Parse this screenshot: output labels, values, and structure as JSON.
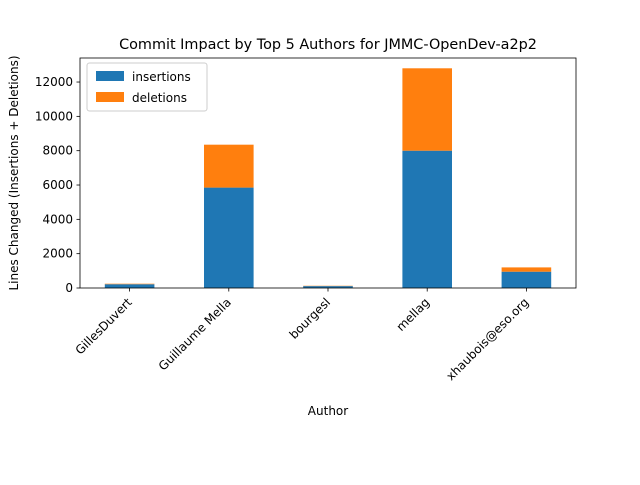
{
  "chart_data": {
    "type": "bar",
    "stacked": true,
    "title": "Commit Impact by Top 5 Authors for JMMC-OpenDev-a2p2",
    "xlabel": "Author",
    "ylabel": "Lines Changed (Insertions + Deletions)",
    "categories": [
      "GillesDuvert",
      "Guillaume Mella",
      "bourgesl",
      "mellag",
      "xhaubois@eso.org"
    ],
    "series": [
      {
        "name": "insertions",
        "color": "#1f77b4",
        "values": [
          220,
          5850,
          110,
          8000,
          950
        ]
      },
      {
        "name": "deletions",
        "color": "#ff7f0e",
        "values": [
          30,
          2500,
          20,
          4800,
          250
        ]
      }
    ],
    "ylim": [
      0,
      13400
    ],
    "yticks": [
      0,
      2000,
      4000,
      6000,
      8000,
      10000,
      12000
    ],
    "ytick_labels": [
      "0",
      "2000",
      "4000",
      "6000",
      "8000",
      "10000",
      "12000"
    ],
    "grid": false,
    "legend_position": "top-left"
  }
}
